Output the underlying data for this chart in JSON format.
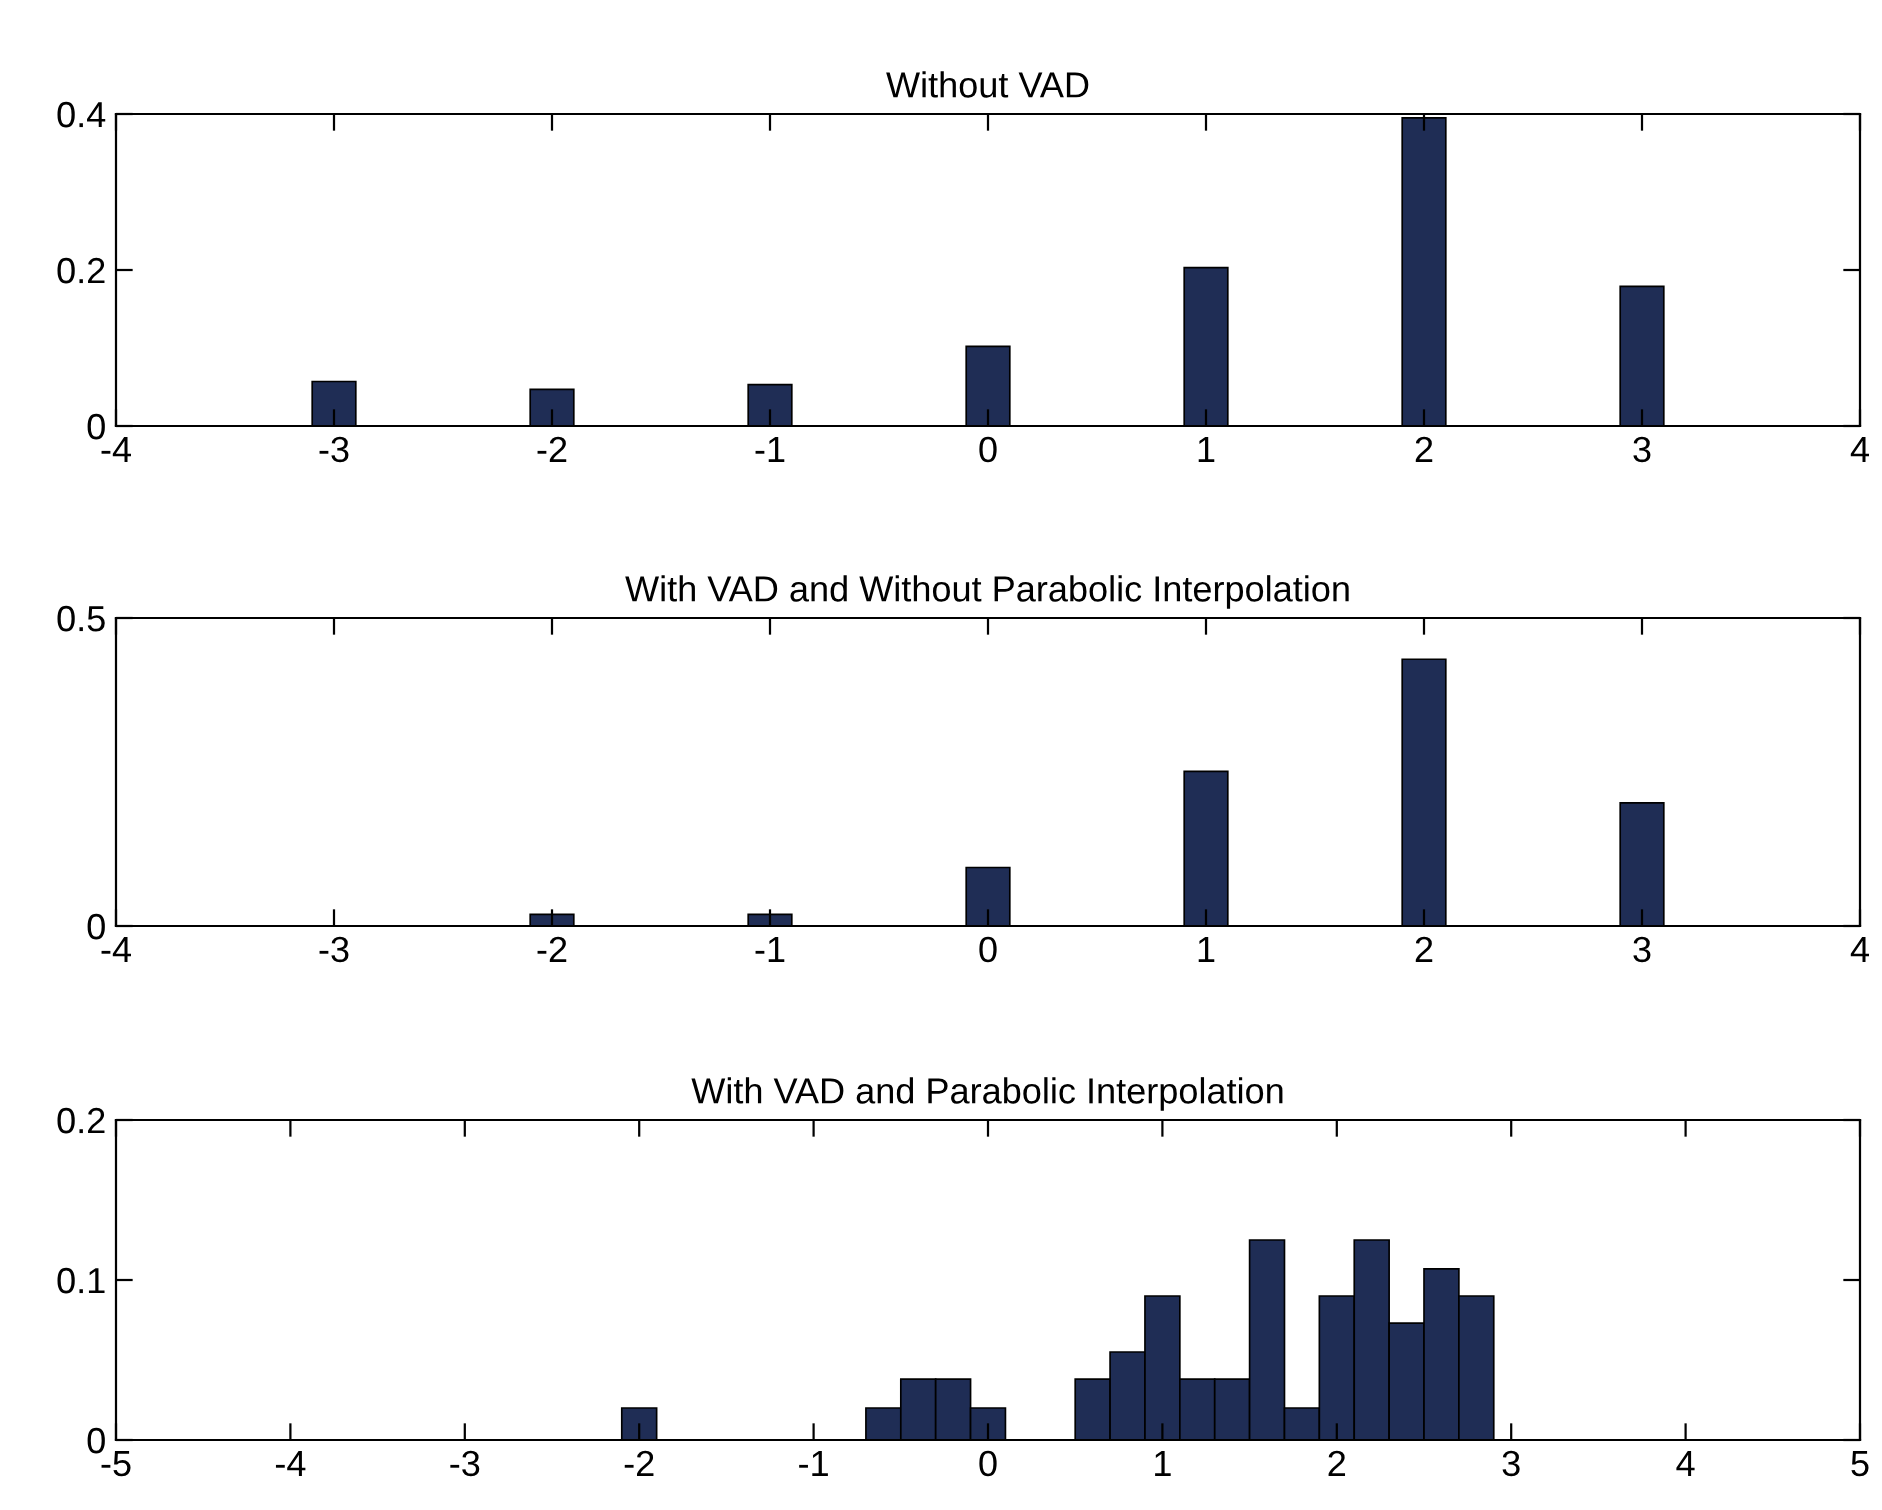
{
  "chart_data": [
    {
      "type": "bar",
      "title": "Without VAD",
      "x": [
        -3,
        -2,
        -1,
        0,
        1,
        2,
        3
      ],
      "values": [
        0.057,
        0.047,
        0.053,
        0.102,
        0.203,
        0.395,
        0.179
      ],
      "color": "#1f2d55",
      "xlim": [
        -4,
        4
      ],
      "xticks": [
        -4,
        -3,
        -2,
        -1,
        0,
        1,
        2,
        3,
        4
      ],
      "ylim": [
        0,
        0.4
      ],
      "yticks": [
        0,
        0.2,
        0.4
      ],
      "grid": false,
      "legend": false
    },
    {
      "type": "bar",
      "title": "With VAD and Without Parabolic Interpolation",
      "x": [
        -3,
        -2,
        -1,
        0,
        1,
        2,
        3
      ],
      "values": [
        0,
        0.019,
        0.019,
        0.095,
        0.251,
        0.433,
        0.2
      ],
      "color": "#1f2d55",
      "xlim": [
        -4,
        4
      ],
      "xticks": [
        -4,
        -3,
        -2,
        -1,
        0,
        1,
        2,
        3,
        4
      ],
      "ylim": [
        0,
        0.5
      ],
      "yticks": [
        0,
        0.5
      ],
      "grid": false,
      "legend": false
    },
    {
      "type": "histogram",
      "title": "With VAD and Parabolic Interpolation",
      "bins": [
        -2.1,
        -1.9,
        -1.7,
        -1.5,
        -1.3,
        -1.1,
        -0.9,
        -0.7,
        -0.5,
        -0.3,
        -0.1,
        0.1,
        0.3,
        0.5,
        0.7,
        0.9,
        1.1,
        1.3,
        1.5,
        1.7,
        1.9,
        2.1,
        2.3,
        2.5,
        2.7,
        2.9
      ],
      "values": [
        0.02,
        0,
        0,
        0,
        0,
        0,
        0,
        0.02,
        0.038,
        0.038,
        0.02,
        0,
        0,
        0.038,
        0.055,
        0.09,
        0.038,
        0.038,
        0.125,
        0.02,
        0.09,
        0.125,
        0.073,
        0.107,
        0.09
      ],
      "color": "#1f2d55",
      "xlim": [
        -5,
        5
      ],
      "xticks": [
        -5,
        -4,
        -3,
        -2,
        -1,
        0,
        1,
        2,
        3,
        4,
        5
      ],
      "ylim": [
        0,
        0.2
      ],
      "yticks": [
        0,
        0.1,
        0.2
      ],
      "grid": false,
      "legend": false
    }
  ]
}
